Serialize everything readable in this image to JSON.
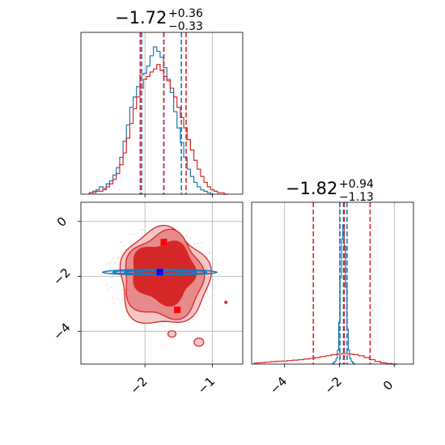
{
  "chart_data": [
    {
      "type": "histogram",
      "panel": "marginal-1",
      "title": {
        "median": "−1.72",
        "plus": "+0.36",
        "minus": "−0.33"
      },
      "xlim": [
        -2.95,
        -0.55
      ],
      "x_ticks": [
        -2,
        -1
      ],
      "grid": true,
      "series": [
        {
          "color": "#1f77b4",
          "median": -1.72,
          "quantiles": [
            -2.05,
            -1.46
          ],
          "bins_x": [
            -2.8,
            -2.75,
            -2.7,
            -2.65,
            -2.6,
            -2.55,
            -2.5,
            -2.45,
            -2.4,
            -2.35,
            -2.3,
            -2.25,
            -2.2,
            -2.15,
            -2.1,
            -2.05,
            -2.0,
            -1.95,
            -1.9,
            -1.85,
            -1.8,
            -1.75,
            -1.7,
            -1.65,
            -1.6,
            -1.55,
            -1.5,
            -1.45,
            -1.4,
            -1.35,
            -1.3,
            -1.25,
            -1.2,
            -1.15,
            -1.1,
            -1.05,
            -1.0
          ],
          "density": [
            0.01,
            0.02,
            0.03,
            0.05,
            0.04,
            0.07,
            0.09,
            0.13,
            0.18,
            0.25,
            0.36,
            0.47,
            0.59,
            0.66,
            0.73,
            0.81,
            0.82,
            0.87,
            0.94,
            1.0,
            0.97,
            0.93,
            0.86,
            0.78,
            0.69,
            0.56,
            0.45,
            0.35,
            0.25,
            0.17,
            0.12,
            0.08,
            0.05,
            0.03,
            0.02,
            0.01,
            0.0
          ]
        },
        {
          "color": "#d62728",
          "median": -1.72,
          "quantiles": [
            -2.07,
            -1.39
          ],
          "bins_x": [
            -2.8,
            -2.75,
            -2.7,
            -2.65,
            -2.6,
            -2.55,
            -2.5,
            -2.45,
            -2.4,
            -2.35,
            -2.3,
            -2.25,
            -2.2,
            -2.15,
            -2.1,
            -2.05,
            -2.0,
            -1.95,
            -1.9,
            -1.85,
            -1.8,
            -1.75,
            -1.7,
            -1.65,
            -1.6,
            -1.55,
            -1.5,
            -1.45,
            -1.4,
            -1.35,
            -1.3,
            -1.25,
            -1.2,
            -1.15,
            -1.1,
            -1.05,
            -1.0,
            -0.95,
            -0.9,
            -0.85,
            -0.8
          ],
          "density": [
            0.01,
            0.01,
            0.02,
            0.02,
            0.03,
            0.05,
            0.07,
            0.1,
            0.14,
            0.2,
            0.28,
            0.38,
            0.48,
            0.58,
            0.66,
            0.72,
            0.78,
            0.8,
            0.83,
            0.85,
            0.88,
            0.84,
            0.8,
            0.77,
            0.72,
            0.66,
            0.59,
            0.52,
            0.45,
            0.37,
            0.3,
            0.23,
            0.17,
            0.12,
            0.08,
            0.05,
            0.03,
            0.02,
            0.01,
            0.01,
            0.0
          ]
        }
      ]
    },
    {
      "type": "scatter",
      "panel": "joint",
      "xlim": [
        -2.95,
        -0.55
      ],
      "ylim": [
        -5.2,
        0.7
      ],
      "x_ticks": [
        -2,
        -1
      ],
      "y_ticks": [
        0,
        -2,
        -4
      ],
      "grid": true,
      "series": [
        {
          "color": "#d62728",
          "role": "contours",
          "levels": [
            {
              "fill": "#f5c6c6",
              "radii": [
                [
                  -1.72,
                  -1.85,
                  0.62,
                  1.55
                ]
              ]
            },
            {
              "fill": "#e88a8a",
              "radii": [
                [
                  -1.72,
                  -1.95,
                  0.55,
                  1.45
                ]
              ]
            },
            {
              "fill": "#d62728",
              "radii": [
                [
                  -1.72,
                  -1.85,
                  0.42,
                  1.05
                ]
              ]
            }
          ],
          "markers": [
            {
              "x": -1.72,
              "y": -0.75
            },
            {
              "x": -1.52,
              "y": -3.22
            }
          ]
        },
        {
          "color": "#1f77b4",
          "role": "contours",
          "ellipse": {
            "cx": -1.78,
            "cy": -1.85,
            "rx": 0.85,
            "ry": 0.1
          },
          "markers": [
            {
              "x": -1.78,
              "y": -1.85
            }
          ]
        }
      ]
    },
    {
      "type": "histogram",
      "panel": "marginal-2",
      "title": {
        "median": "−1.82",
        "plus": "+0.94",
        "minus": "−1.13"
      },
      "xlim": [
        -5.2,
        0.7
      ],
      "x_ticks": [
        -4,
        -2,
        0
      ],
      "grid": true,
      "series": [
        {
          "color": "#1f77b4",
          "median": -1.85,
          "quantiles": [
            -1.98,
            -1.72
          ],
          "bins_x": [
            -2.25,
            -2.2,
            -2.15,
            -2.1,
            -2.05,
            -2.0,
            -1.95,
            -1.9,
            -1.85,
            -1.8,
            -1.75,
            -1.7,
            -1.65,
            -1.6,
            -1.55,
            -1.5,
            -1.45
          ],
          "density": [
            0.0,
            0.01,
            0.02,
            0.04,
            0.1,
            0.3,
            0.62,
            0.9,
            1.0,
            0.85,
            0.55,
            0.25,
            0.1,
            0.04,
            0.02,
            0.01,
            0.0
          ]
        },
        {
          "color": "#d62728",
          "median": -1.82,
          "quantiles": [
            -2.95,
            -0.88
          ],
          "bins_x": [
            -5.0,
            -4.8,
            -4.6,
            -4.4,
            -4.2,
            -4.0,
            -3.8,
            -3.6,
            -3.4,
            -3.2,
            -3.0,
            -2.8,
            -2.6,
            -2.4,
            -2.2,
            -2.0,
            -1.8,
            -1.6,
            -1.4,
            -1.2,
            -1.0,
            -0.8,
            -0.6,
            -0.4,
            -0.2,
            0.0
          ],
          "density": [
            0.005,
            0.007,
            0.009,
            0.011,
            0.013,
            0.014,
            0.016,
            0.018,
            0.02,
            0.023,
            0.026,
            0.03,
            0.034,
            0.038,
            0.043,
            0.046,
            0.048,
            0.046,
            0.043,
            0.038,
            0.03,
            0.02,
            0.012,
            0.006,
            0.003,
            0.0
          ]
        }
      ]
    }
  ]
}
